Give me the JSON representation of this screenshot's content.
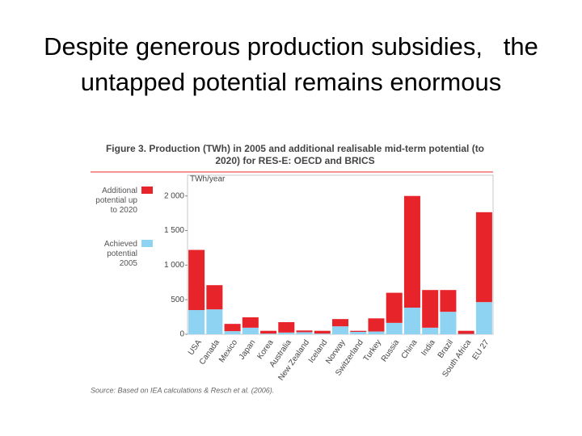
{
  "slide_title": "Despite generous production subsidies,   the untapped potential remains enormous",
  "chart_data": {
    "type": "stacked_bar",
    "title": "Figure 3. Production (TWh) in 2005 and additional realisable mid-term potential (to 2020) for RES-E: OECD and BRICS",
    "y_label": "TWh/year",
    "source": "Source: Based on IEA calculations & Resch et al. (2006).",
    "categories": [
      "USA",
      "Canada",
      "Mexico",
      "Japan",
      "Korea",
      "Australia",
      "New Zealand",
      "Iceland",
      "Norway",
      "Switzerland",
      "Turkey",
      "Russia",
      "China",
      "India",
      "Brazil",
      "South Africa",
      "EU 27"
    ],
    "series": [
      {
        "name": "Achieved potential 2005",
        "color": "#8fd3f2",
        "values": [
          350,
          360,
          45,
          95,
          10,
          25,
          30,
          10,
          115,
          35,
          40,
          165,
          385,
          95,
          325,
          5,
          465
        ]
      },
      {
        "name": "Additional potential up to 2020",
        "color": "#e8242b",
        "values": [
          870,
          350,
          105,
          150,
          40,
          150,
          25,
          40,
          105,
          15,
          190,
          435,
          1615,
          545,
          315,
          45,
          1300
        ]
      }
    ],
    "ylim": [
      0,
      2300
    ],
    "yticks": [
      0,
      500,
      {
        "value": 1000,
        "label": "1 000"
      },
      {
        "value": 1500,
        "label": "1 500"
      },
      {
        "value": 2000,
        "label": "2 000"
      }
    ]
  }
}
